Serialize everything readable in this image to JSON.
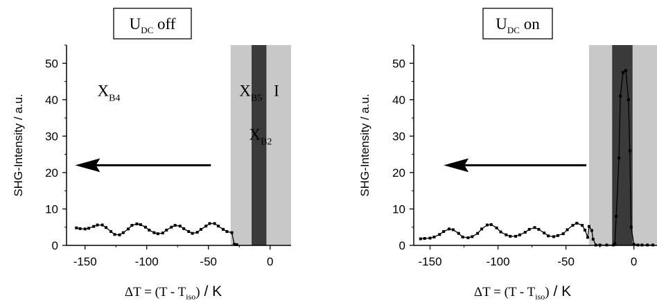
{
  "chart_data": [
    {
      "type": "line",
      "title_box": {
        "main": "U",
        "sub": "DC",
        "rest": " off"
      },
      "ylabel": "SHG-Intensity / a.u.",
      "xlabel": {
        "pre": "ΔT = (T - T",
        "sub": "iso",
        "post": ")",
        "unit": "/ K"
      },
      "xlim": [
        -165,
        17
      ],
      "ylim": [
        0,
        55
      ],
      "xticks": [
        "-150",
        "-100",
        "-50",
        "0"
      ],
      "xtick_values": [
        -150,
        -100,
        -50,
        0
      ],
      "yticks": [
        "0",
        "10",
        "20",
        "30",
        "40",
        "50"
      ],
      "ytick_values": [
        0,
        10,
        20,
        30,
        40,
        50
      ],
      "bands": [
        {
          "from": -32,
          "to": 17,
          "color": "#c8c8c8"
        },
        {
          "from": -15,
          "to": -3,
          "color": "#3a3a3a"
        }
      ],
      "arrow": {
        "from_x": -48,
        "to_x": -158,
        "y": 22
      },
      "phase_labels": [
        {
          "main": "X",
          "sub": "B4",
          "x": -140,
          "y": 41
        },
        {
          "main": "X",
          "sub": "B5",
          "x": -25,
          "y": 41
        },
        {
          "main": "I",
          "sub": "",
          "x": 3,
          "y": 41
        },
        {
          "main": "X",
          "sub": "B2",
          "x": -17,
          "y": 29
        }
      ],
      "series": [
        {
          "x": [
            -157,
            -154,
            -150,
            -147,
            -143,
            -140,
            -136,
            -133,
            -129,
            -126,
            -122,
            -119,
            -115,
            -112,
            -108,
            -105,
            -101,
            -98,
            -94,
            -91,
            -87,
            -84,
            -80,
            -77,
            -73,
            -70,
            -66,
            -63,
            -59,
            -56,
            -52,
            -49,
            -45,
            -42,
            -38,
            -35,
            -31,
            -29,
            -27
          ],
          "y": [
            4.8,
            4.6,
            4.5,
            4.7,
            5.2,
            5.6,
            5.6,
            4.9,
            3.8,
            3.0,
            2.9,
            3.5,
            4.5,
            5.5,
            5.9,
            5.7,
            5.0,
            4.2,
            3.5,
            3.2,
            3.4,
            4.2,
            5.0,
            5.5,
            5.3,
            4.6,
            3.8,
            3.3,
            3.6,
            4.4,
            5.3,
            6.0,
            6.0,
            5.3,
            4.4,
            3.8,
            3.5,
            0.3,
            0.2
          ]
        }
      ]
    },
    {
      "type": "line",
      "title_box": {
        "main": "U",
        "sub": "DC",
        "rest": " on"
      },
      "ylabel": "SHG-Intensity / a.u.",
      "xlabel": {
        "pre": "ΔT = (T - T",
        "sub": "iso",
        "post": ")",
        "unit": "/ K"
      },
      "xlim": [
        -162,
        17
      ],
      "ylim": [
        0,
        55
      ],
      "xticks": [
        "-150",
        "-100",
        "-50",
        "0"
      ],
      "xtick_values": [
        -150,
        -100,
        -50,
        0
      ],
      "yticks": [
        "0",
        "10",
        "20",
        "30",
        "40",
        "50"
      ],
      "ytick_values": [
        0,
        10,
        20,
        30,
        40,
        50
      ],
      "bands": [
        {
          "from": -33,
          "to": 17,
          "color": "#c8c8c8"
        },
        {
          "from": -16,
          "to": -1,
          "color": "#3a3a3a"
        }
      ],
      "arrow": {
        "from_x": -35,
        "to_x": -140,
        "y": 22
      },
      "phase_labels": [],
      "series": [
        {
          "x": [
            -157,
            -154,
            -150,
            -147,
            -143,
            -140,
            -136,
            -133,
            -129,
            -126,
            -122,
            -119,
            -115,
            -112,
            -108,
            -105,
            -101,
            -98,
            -94,
            -91,
            -87,
            -84,
            -80,
            -77,
            -73,
            -70,
            -66,
            -63,
            -59,
            -56,
            -52,
            -49,
            -45,
            -42,
            -38,
            -36,
            -34,
            -33,
            -31,
            -30,
            -28,
            -25,
            -20,
            -15,
            -14,
            -13,
            -11,
            -10,
            -8,
            -6,
            -4,
            -3,
            -2,
            0,
            3,
            6,
            10,
            14
          ],
          "y": [
            1.8,
            1.9,
            2.0,
            2.3,
            3.0,
            3.8,
            4.5,
            4.3,
            3.3,
            2.3,
            2.1,
            2.4,
            3.3,
            4.5,
            5.6,
            5.7,
            4.8,
            3.7,
            2.9,
            2.5,
            2.5,
            2.9,
            3.6,
            4.4,
            4.9,
            4.4,
            3.4,
            2.6,
            2.4,
            2.7,
            3.2,
            4.3,
            5.5,
            6.1,
            5.5,
            4.2,
            2.2,
            5.2,
            4.1,
            1.7,
            0.1,
            0.1,
            0.1,
            0.1,
            0.5,
            8.0,
            24.0,
            41.0,
            47.5,
            48.0,
            40.0,
            26.0,
            5.0,
            0.3,
            0.1,
            0.1,
            0.1,
            0.1
          ]
        }
      ]
    }
  ]
}
